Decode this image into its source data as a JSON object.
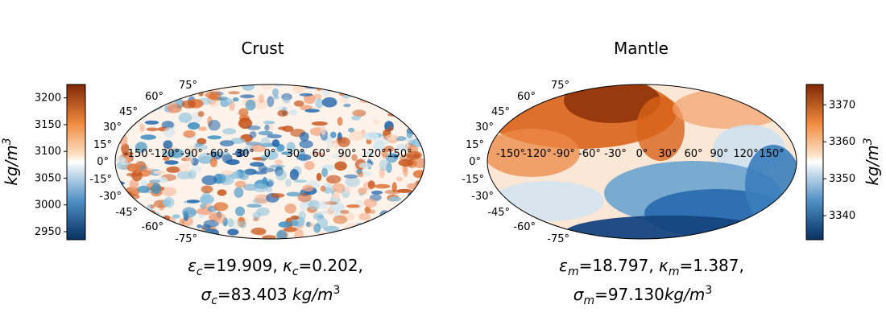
{
  "chart_data": [
    {
      "type": "heatmap",
      "projection": "mollweide",
      "title": "Crust",
      "colormap": "diverging blue-white-orange",
      "colorbar": {
        "side": "left",
        "range": [
          2935,
          3225
        ],
        "ticks": [
          "3200",
          "3150",
          "3100",
          "3050",
          "3000",
          "2950"
        ],
        "tick_values": [
          3200,
          3150,
          3100,
          3050,
          3000,
          2950
        ],
        "label_base": "kg/m",
        "label_exp": "3"
      },
      "lon_labels": [
        "-150°",
        "-120°",
        "-90°",
        "-60°",
        "-30°",
        "0°",
        "30°",
        "60°",
        "90°",
        "120°",
        "150°"
      ],
      "lat_labels": [
        "75°",
        "60°",
        "45°",
        "30°",
        "15°",
        "0°",
        "-15°",
        "-30°",
        "-45°",
        "-60°",
        "-75°"
      ],
      "pattern": "small-scale noise, mean near 3100",
      "caption_line1": {
        "eps_sym": "ε",
        "eps_sub": "c",
        "eps_val": "=19.909, ",
        "kap_sym": "κ",
        "kap_sub": "c",
        "kap_val": "=0.202,"
      },
      "caption_line2": {
        "sig_sym": "σ",
        "sig_sub": "c",
        "sig_val": "=83.403 ",
        "unit_base": "kg/m",
        "unit_exp": "3"
      }
    },
    {
      "type": "heatmap",
      "projection": "mollweide",
      "title": "Mantle",
      "colormap": "diverging blue-white-orange",
      "colorbar": {
        "side": "right",
        "range": [
          3333.5,
          3375.5
        ],
        "ticks": [
          "3370",
          "3360",
          "3350",
          "3340"
        ],
        "tick_values": [
          3370,
          3360,
          3350,
          3340
        ],
        "label_base": "kg/m",
        "label_exp": "3"
      },
      "lon_labels": [
        "-150°",
        "-120°",
        "-90°",
        "-60°",
        "-30°",
        "0°",
        "30°",
        "60°",
        "90°",
        "120°",
        "150°"
      ],
      "lat_labels": [
        "75°",
        "60°",
        "45°",
        "30°",
        "15°",
        "0°",
        "-15°",
        "-30°",
        "-45°",
        "-60°",
        "-75°"
      ],
      "pattern": "large-scale: high density north, low density south-east",
      "caption_line1": {
        "eps_sym": "ε",
        "eps_sub": "m",
        "eps_val": "=18.797, ",
        "kap_sym": "κ",
        "kap_sub": "m",
        "kap_val": "=1.387,"
      },
      "caption_line2": {
        "sig_sym": "σ",
        "sig_sub": "m",
        "sig_val": "=97.130",
        "unit_base": "kg/m",
        "unit_exp": "3"
      }
    }
  ]
}
